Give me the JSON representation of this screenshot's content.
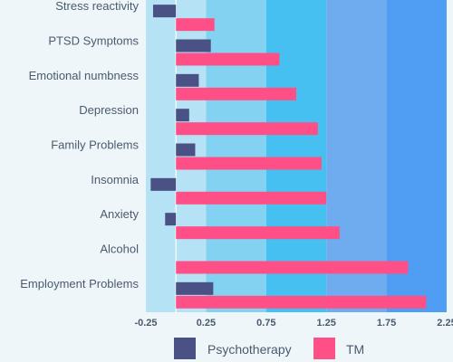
{
  "chart_data": {
    "type": "bar",
    "orientation": "horizontal",
    "categories": [
      "Stress reactivity",
      "PTSD Symptoms",
      "Emotional numbness",
      "Depression",
      "Family Problems",
      "Insomnia",
      "Anxiety",
      "Alcohol",
      "Employment Problems"
    ],
    "series": [
      {
        "name": "Psychotherapy",
        "color": "#4a5184",
        "values": [
          -0.19,
          0.29,
          0.19,
          0.11,
          0.16,
          -0.21,
          -0.09,
          0.0,
          0.31
        ]
      },
      {
        "name": "TM",
        "color": "#ff4f87",
        "values": [
          0.32,
          0.86,
          1.0,
          1.18,
          1.21,
          1.25,
          1.36,
          1.93,
          2.08
        ]
      }
    ],
    "xlim": [
      -0.25,
      2.25
    ],
    "xticks": [
      "-0.25",
      "0.25",
      "0.75",
      "1.25",
      "1.75",
      "2.25"
    ],
    "band_colors": [
      "#b5e3f5",
      "#84d2f1",
      "#45c0f1",
      "#6eacef",
      "#4f9ef3"
    ],
    "legend_position": "bottom",
    "grid": false
  }
}
